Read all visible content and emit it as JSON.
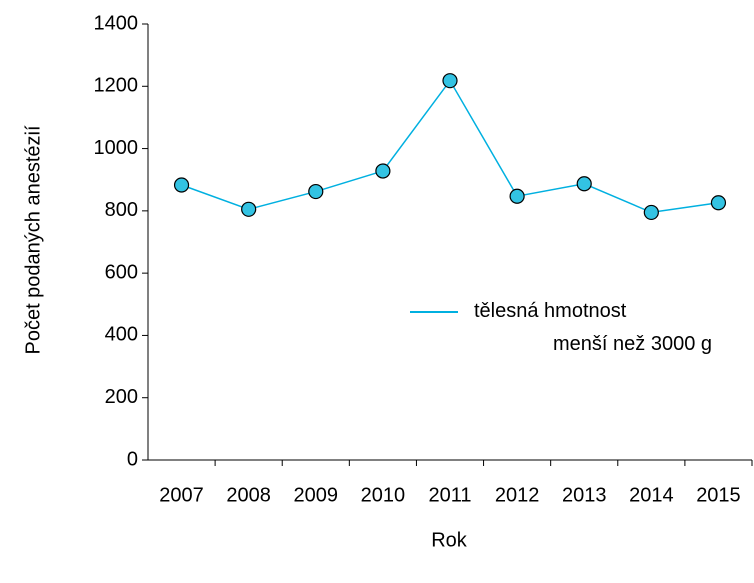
{
  "chart_data": {
    "type": "line",
    "x_label": "Rok",
    "y_label": "Počet podaných anestézií",
    "categories": [
      "2007",
      "2008",
      "2009",
      "2010",
      "2011",
      "2012",
      "2013",
      "2014",
      "2015"
    ],
    "series": [
      {
        "name": "tělesná hmotnost\nmenší než 3000 g",
        "color": "#00b0e0",
        "marker_color": "#33c3e3",
        "values": [
          883,
          805,
          862,
          928,
          1218,
          847,
          887,
          795,
          826
        ]
      }
    ],
    "ylim": [
      0,
      1400
    ],
    "yticks": [
      0,
      200,
      400,
      600,
      800,
      1000,
      1200,
      1400
    ],
    "grid": false,
    "legend": "right"
  }
}
